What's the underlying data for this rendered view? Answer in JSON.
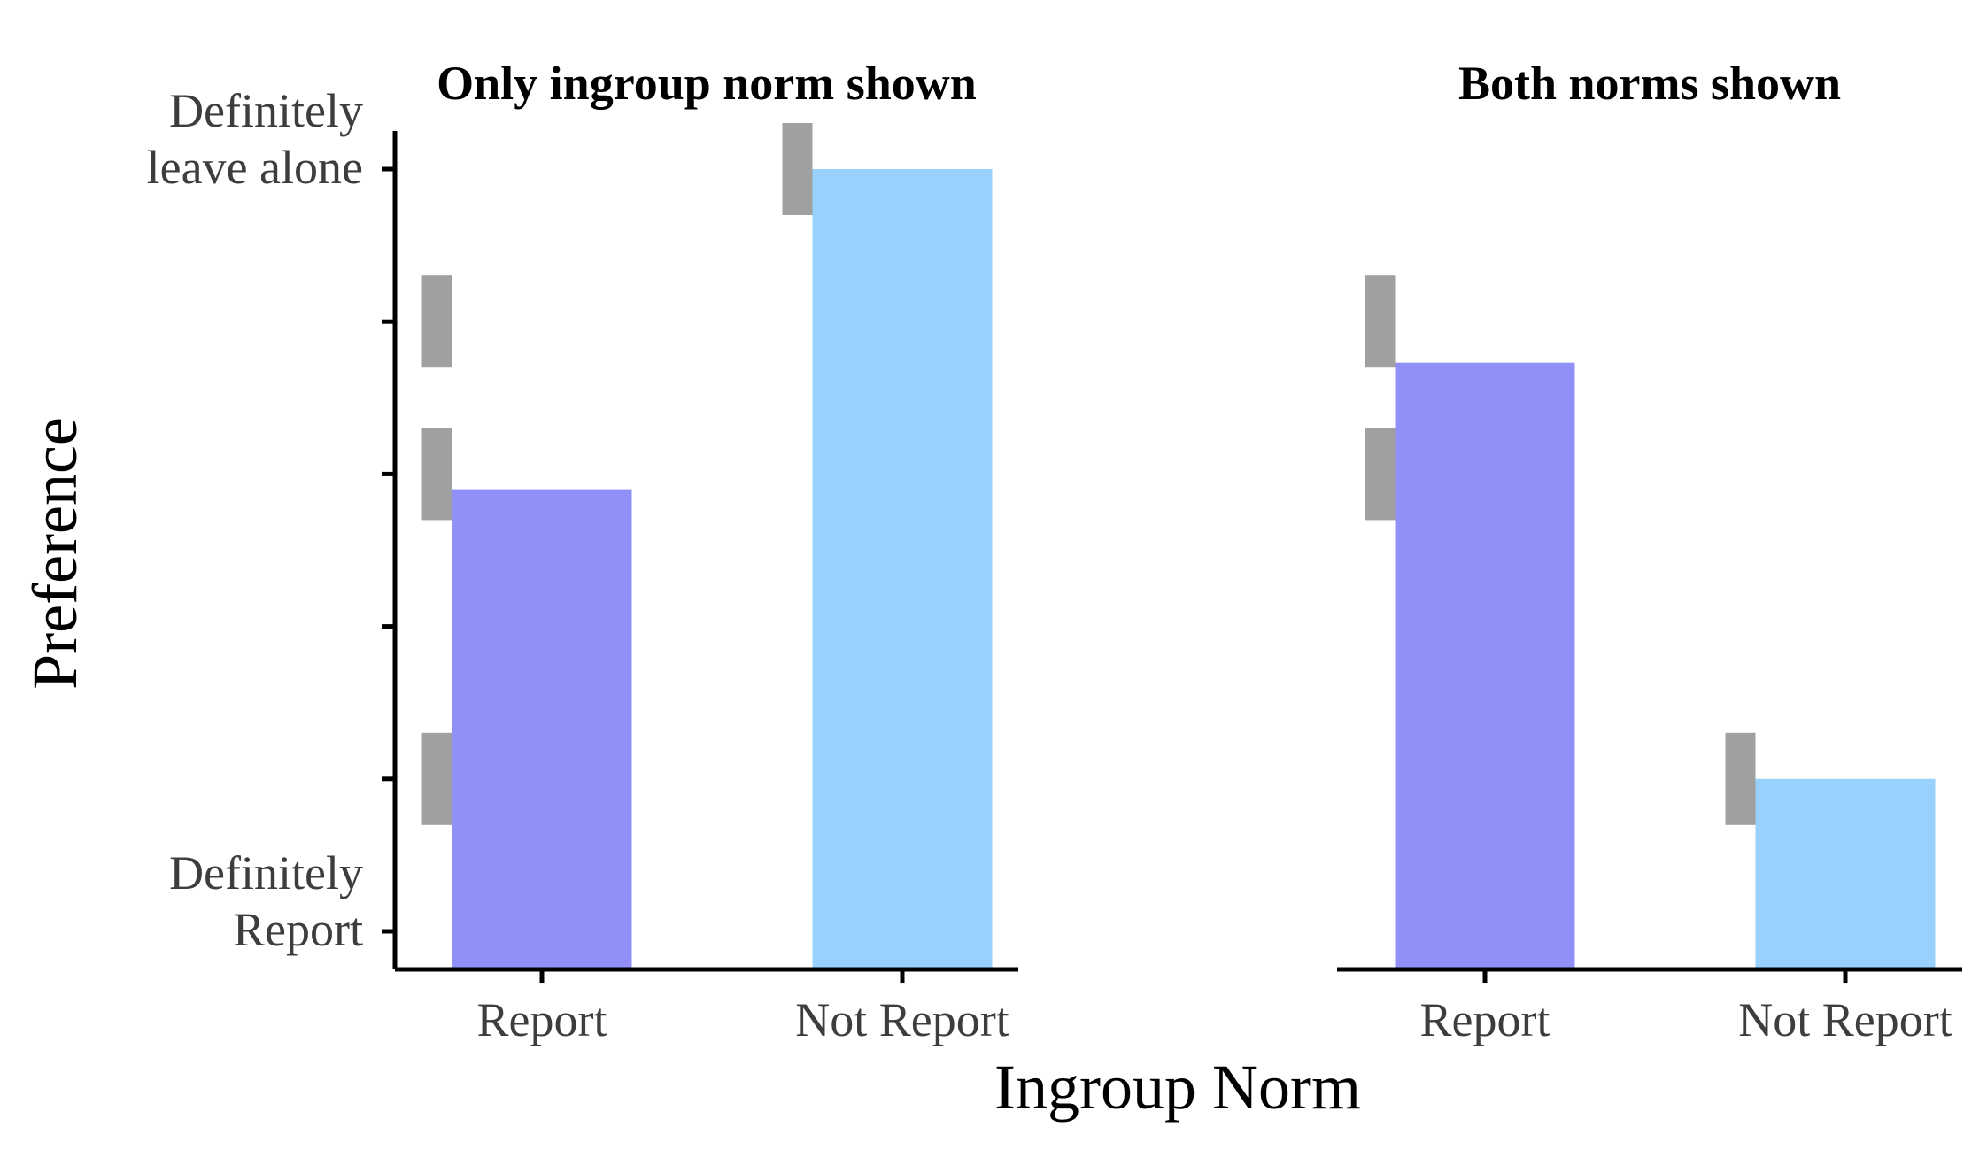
{
  "chart_data": {
    "type": "bar",
    "xlabel": "Ingroup Norm",
    "ylabel": "Preference",
    "categories": [
      "Report",
      "Not Report"
    ],
    "ylim": [
      0.75,
      6.25
    ],
    "y_ticks": [
      1,
      2,
      3,
      4,
      5,
      6
    ],
    "y_tick_labels": [
      {
        "value": 1,
        "lines": [
          "Definitely",
          "Report"
        ]
      },
      {
        "value": 6,
        "lines": [
          "Definitely",
          "leave alone"
        ]
      }
    ],
    "colors": {
      "Report": "#9090f8",
      "Not Report": "#99d1fd",
      "marker": "#a0a0a0"
    },
    "panels": [
      {
        "title": "Only ingroup norm shown",
        "show_y_axis": true,
        "bars": [
          {
            "category": "Report",
            "value": 3.9
          },
          {
            "category": "Not Report",
            "value": 6.0
          }
        ],
        "markers": [
          {
            "category": "Report",
            "values": [
              5,
              4,
              2
            ]
          },
          {
            "category": "Not Report",
            "values": [
              6
            ]
          }
        ]
      },
      {
        "title": "Both norms shown",
        "show_y_axis": false,
        "bars": [
          {
            "category": "Report",
            "value": 4.73
          },
          {
            "category": "Not Report",
            "value": 2.0
          }
        ],
        "markers": [
          {
            "category": "Report",
            "values": [
              5,
              4
            ]
          },
          {
            "category": "Not Report",
            "values": [
              2
            ]
          }
        ]
      }
    ]
  }
}
